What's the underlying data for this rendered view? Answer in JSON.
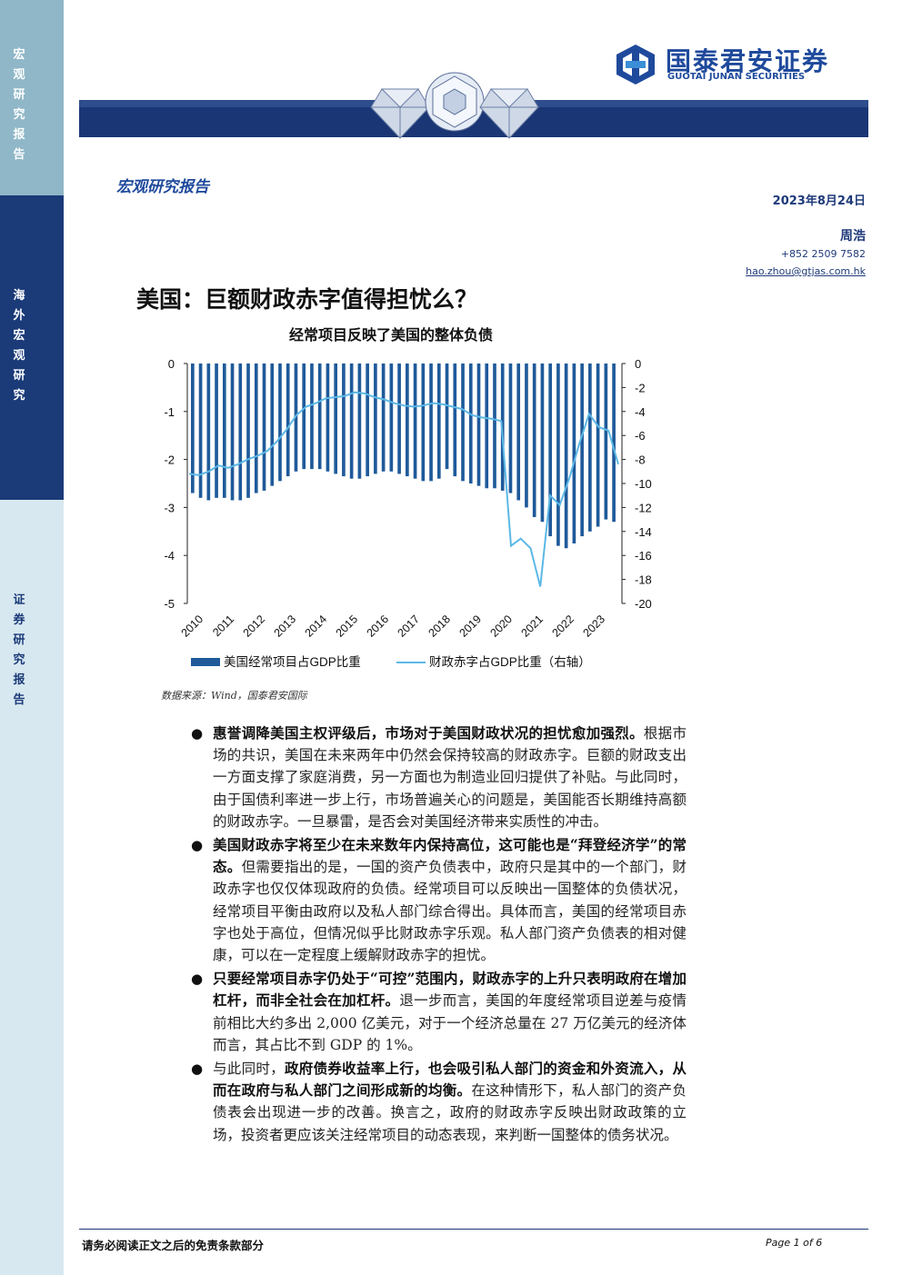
{
  "sidebar": {
    "top_label": "宏观研究报告",
    "mid_label": "海外宏观研究",
    "bottom_label": "证券研究报告"
  },
  "header": {
    "logo_cn": "国泰君安证券",
    "logo_en": "GUOTAI JUNAN SECURITIES",
    "report_type": "宏观研究报告",
    "date": "2023年8月24日",
    "author": "周浩",
    "phone": "+852 2509 7582",
    "email": "hao.zhou@gtjas.com.hk"
  },
  "title": "美国：巨额财政赤字值得担忧么？",
  "chart_title": "经常项目反映了美国的整体负债",
  "chart_source": "数据来源：Wind，国泰君安国际",
  "chart_data": {
    "type": "bar+line",
    "title": "经常项目反映了美国的整体负债",
    "x_ticks": [
      "2010",
      "2011",
      "2012",
      "2013",
      "2014",
      "2015",
      "2016",
      "2017",
      "2018",
      "2019",
      "2020",
      "2021",
      "2022",
      "2023"
    ],
    "left_axis": {
      "ticks": [
        "0",
        "-1",
        "-2",
        "-3",
        "-4",
        "-5"
      ],
      "range": [
        -5,
        0
      ]
    },
    "right_axis": {
      "ticks": [
        "0",
        "-2",
        "-4",
        "-6",
        "-8",
        "-10",
        "-12",
        "-14",
        "-16",
        "-18",
        "-20"
      ],
      "range": [
        -20,
        0
      ]
    },
    "series": [
      {
        "name": "美国经常项目占GDP比重",
        "type": "bar",
        "axis": "left",
        "values": [
          -2.7,
          -2.8,
          -2.85,
          -2.8,
          -2.8,
          -2.85,
          -2.85,
          -2.8,
          -2.7,
          -2.65,
          -2.55,
          -2.45,
          -2.35,
          -2.25,
          -2.2,
          -2.2,
          -2.2,
          -2.25,
          -2.3,
          -2.35,
          -2.4,
          -2.4,
          -2.35,
          -2.3,
          -2.25,
          -2.25,
          -2.3,
          -2.35,
          -2.4,
          -2.45,
          -2.45,
          -2.4,
          -2.2,
          -2.35,
          -2.45,
          -2.5,
          -2.55,
          -2.6,
          -2.6,
          -2.65,
          -2.7,
          -2.85,
          -3.0,
          -3.2,
          -3.3,
          -3.6,
          -3.8,
          -3.85,
          -3.75,
          -3.6,
          -3.5,
          -3.4,
          -3.25,
          -3.3
        ]
      },
      {
        "name": "财政赤字占GDP比重（右轴）",
        "type": "line",
        "axis": "right",
        "values": [
          -9.2,
          -9.3,
          -9.0,
          -8.5,
          -8.7,
          -8.4,
          -8.0,
          -7.7,
          -7.3,
          -6.5,
          -5.5,
          -4.3,
          -3.6,
          -3.3,
          -2.9,
          -2.8,
          -2.7,
          -2.4,
          -2.5,
          -2.8,
          -3.0,
          -3.3,
          -3.5,
          -3.6,
          -3.5,
          -3.3,
          -3.4,
          -3.6,
          -3.8,
          -4.3,
          -4.5,
          -4.6,
          -4.8,
          -15.2,
          -14.6,
          -15.4,
          -18.6,
          -11.0,
          -11.8,
          -9.5,
          -6.7,
          -4.2,
          -5.3,
          -5.6,
          -8.4
        ]
      }
    ],
    "legend": [
      "美国经常项目占GDP比重",
      "财政赤字占GDP比重（右轴）"
    ],
    "legend_position": "bottom",
    "colors": {
      "bar": "#1f5a9a",
      "line": "#5cb8e6"
    },
    "grid": false
  },
  "bullets": [
    {
      "bold": "惠誉调降美国主权评级后，市场对于美国财政状况的担忧愈加强烈。",
      "text": "根据市场的共识，美国在未来两年中仍然会保持较高的财政赤字。巨额的财政支出一方面支撑了家庭消费，另一方面也为制造业回归提供了补贴。与此同时，由于国债利率进一步上行，市场普遍关心的问题是，美国能否长期维持高额的财政赤字。一旦暴雷，是否会对美国经济带来实质性的冲击。"
    },
    {
      "bold": "美国财政赤字将至少在未来数年内保持高位，这可能也是“拜登经济学”的常态。",
      "text": "但需要指出的是，一国的资产负债表中，政府只是其中的一个部门，财政赤字也仅仅体现政府的负债。经常项目可以反映出一国整体的负债状况，经常项目平衡由政府以及私人部门综合得出。具体而言，美国的经常项目赤字也处于高位，但情况似乎比财政赤字乐观。私人部门资产负债表的相对健康，可以在一定程度上缓解财政赤字的担忧。"
    },
    {
      "bold": "只要经常项目赤字仍处于“可控”范围内，财政赤字的上升只表明政府在增加杠杆，而非全社会在加杠杆。",
      "text": "退一步而言，美国的年度经常项目逆差与疫情前相比大约多出 2,000 亿美元，对于一个经济总量在 27 万亿美元的经济体而言，其占比不到 GDP 的 1%。"
    },
    {
      "pre": "与此同时，",
      "bold": "政府债券收益率上行，也会吸引私人部门的资金和外资流入，从而在政府与私人部门之间形成新的均衡。",
      "text": "在这种情形下，私人部门的资产负债表会出现进一步的改善。换言之，政府的财政赤字反映出财政政策的立场，投资者更应该关注经常项目的动态表现，来判断一国整体的债务状况。"
    }
  ],
  "footer": {
    "disclaimer": "请务必阅读正文之后的免责条款部分",
    "page": "Page 1 of 6"
  }
}
